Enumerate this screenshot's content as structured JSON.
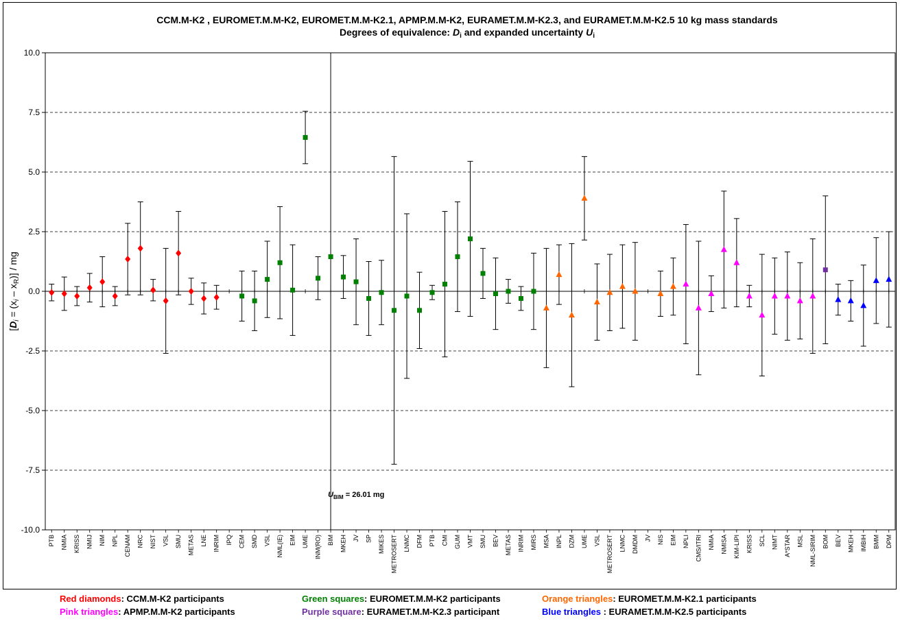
{
  "chart_data": {
    "type": "scatter",
    "title": "CCM.M-K2 , EUROMET.M.M-K2, EUROMET.M.M-K2.1, APMP.M.M-K2, EURAMET.M.M-K2.3, and EURAMET.M.M-K2.5   10 kg mass standards",
    "subtitle": "Degrees of equivalence: D",
    "subtitle_sub": "i",
    "subtitle_tail": " and expanded uncertainty U",
    "subtitle_tail_sub": "i",
    "ylabel": "[D",
    "ylabel_parts": {
      "a": "[",
      "D": "D",
      "i1": "i",
      "b": " = (x",
      "i2": "i",
      "c": " – x",
      "R": "R",
      "d": ")] / mg"
    },
    "ylim": [
      -10,
      10
    ],
    "yticks": [
      "10.0",
      "7.5",
      "5.0",
      "2.5",
      "0.0",
      "-2.5",
      "-5.0",
      "-7.5",
      "-10.0"
    ],
    "ytick_values": [
      10,
      7.5,
      5,
      2.5,
      0,
      -2.5,
      -5,
      -7.5,
      -10
    ],
    "grid": "horizontal dashed",
    "annotation": {
      "U": "U",
      "sub": "BIM",
      "text": " = 26.01 mg"
    },
    "categories": [
      "PTB",
      "NMIA",
      "KRISS",
      "NMIJ",
      "NIM",
      "NPL",
      "CENAM",
      "NRC",
      "NIST",
      "VSL",
      "SMU",
      "METAS",
      "LNE",
      "INRIM",
      "IPQ",
      "CEM",
      "SMD",
      "VSL",
      "NML(IE)",
      "EIM",
      "UME",
      "INM(RO)",
      "BIM",
      "MKEH",
      "JV",
      "SP",
      "MIKES",
      "METROSERT",
      "LNMC",
      "DFM",
      "PTB",
      "CMI",
      "GUM",
      "VMT",
      "SMU",
      "BEV",
      "METAS",
      "INRIM",
      "MIRS",
      "MSA",
      "INPL",
      "DZM",
      "UME",
      "VSL",
      "METROSERT",
      "LNMC",
      "DMDM",
      "JV",
      "NIS",
      "EIM",
      "NPLI",
      "CMS/ITRI",
      "NMIA",
      "NMISA",
      "KIM-LIPI",
      "KRISS",
      "SCL",
      "NIMT",
      "A*STAR",
      "MSL",
      "NML-SIRIM",
      "BOM",
      "BEV",
      "MKEH",
      "IMBIH",
      "BMM",
      "DPM"
    ],
    "series": [
      {
        "name": "Red diamonds",
        "color": "#ff0000",
        "marker": "diamond",
        "points": [
          {
            "c": 0,
            "y": -0.05,
            "u": 0.35
          },
          {
            "c": 1,
            "y": -0.1,
            "u": 0.7
          },
          {
            "c": 2,
            "y": -0.2,
            "u": 0.4
          },
          {
            "c": 3,
            "y": 0.15,
            "u": 0.6
          },
          {
            "c": 4,
            "y": 0.4,
            "u": 1.05
          },
          {
            "c": 5,
            "y": -0.2,
            "u": 0.4
          },
          {
            "c": 6,
            "y": 1.35,
            "u": 1.5
          },
          {
            "c": 7,
            "y": 1.8,
            "u": 1.95
          },
          {
            "c": 8,
            "y": 0.05,
            "u": 0.45
          },
          {
            "c": 9,
            "y": -0.4,
            "u": 2.2
          },
          {
            "c": 10,
            "y": 1.6,
            "u": 1.75
          },
          {
            "c": 11,
            "y": 0.0,
            "u": 0.55
          },
          {
            "c": 12,
            "y": -0.3,
            "u": 0.65
          },
          {
            "c": 13,
            "y": -0.25,
            "u": 0.5
          }
        ]
      },
      {
        "name": "Green squares",
        "color": "#008000",
        "marker": "square",
        "points": [
          {
            "c": 15,
            "y": -0.2,
            "u": 1.05
          },
          {
            "c": 16,
            "y": -0.4,
            "u": 1.25
          },
          {
            "c": 17,
            "y": 0.5,
            "u": 1.6
          },
          {
            "c": 18,
            "y": 1.2,
            "u": 2.35
          },
          {
            "c": 19,
            "y": 0.05,
            "u": 1.9
          },
          {
            "c": 20,
            "y": 6.45,
            "u": 1.1
          },
          {
            "c": 21,
            "y": 0.55,
            "u": 0.9
          },
          {
            "c": 22,
            "y": 1.45,
            "u": 13.0
          },
          {
            "c": 23,
            "y": 0.6,
            "u": 0.9
          },
          {
            "c": 24,
            "y": 0.4,
            "u": 1.8
          },
          {
            "c": 25,
            "y": -0.3,
            "u": 1.55
          },
          {
            "c": 26,
            "y": -0.05,
            "u": 1.35
          },
          {
            "c": 27,
            "y": -0.8,
            "u": 6.45
          },
          {
            "c": 28,
            "y": -0.2,
            "u": 3.45
          },
          {
            "c": 29,
            "y": -0.8,
            "u": 1.6
          },
          {
            "c": 30,
            "y": -0.05,
            "u": 0.3
          },
          {
            "c": 31,
            "y": 0.3,
            "u": 3.05
          },
          {
            "c": 32,
            "y": 1.45,
            "u": 2.3
          },
          {
            "c": 33,
            "y": 2.2,
            "u": 3.25
          },
          {
            "c": 34,
            "y": 0.75,
            "u": 1.05
          },
          {
            "c": 35,
            "y": -0.1,
            "u": 1.5
          },
          {
            "c": 36,
            "y": 0.0,
            "u": 0.5
          },
          {
            "c": 37,
            "y": -0.3,
            "u": 0.5
          },
          {
            "c": 38,
            "y": 0.0,
            "u": 1.6
          }
        ]
      },
      {
        "name": "Orange triangles",
        "color": "#ff6600",
        "marker": "triangle",
        "points": [
          {
            "c": 39,
            "y": -0.7,
            "u": 2.5
          },
          {
            "c": 40,
            "y": 0.7,
            "u": 1.25
          },
          {
            "c": 41,
            "y": -1.0,
            "u": 3.0
          },
          {
            "c": 42,
            "y": 3.9,
            "u": 1.75
          },
          {
            "c": 43,
            "y": -0.45,
            "u": 1.6
          },
          {
            "c": 44,
            "y": -0.05,
            "u": 1.6
          },
          {
            "c": 45,
            "y": 0.2,
            "u": 1.75
          },
          {
            "c": 46,
            "y": 0.0,
            "u": 2.05
          },
          {
            "c": 48,
            "y": -0.1,
            "u": 0.95
          },
          {
            "c": 49,
            "y": 0.2,
            "u": 1.2
          }
        ]
      },
      {
        "name": "Pink triangles",
        "color": "#ff00ff",
        "marker": "triangle",
        "points": [
          {
            "c": 50,
            "y": 0.3,
            "u": 2.5
          },
          {
            "c": 51,
            "y": -0.7,
            "u": 2.8
          },
          {
            "c": 52,
            "y": -0.1,
            "u": 0.75
          },
          {
            "c": 53,
            "y": 1.75,
            "u": 2.45
          },
          {
            "c": 54,
            "y": 1.2,
            "u": 1.85
          },
          {
            "c": 55,
            "y": -0.2,
            "u": 0.45
          },
          {
            "c": 56,
            "y": -1.0,
            "u": 2.55
          },
          {
            "c": 57,
            "y": -0.2,
            "u": 1.6
          },
          {
            "c": 58,
            "y": -0.2,
            "u": 1.85
          },
          {
            "c": 59,
            "y": -0.4,
            "u": 1.6
          },
          {
            "c": 60,
            "y": -0.2,
            "u": 2.4
          }
        ]
      },
      {
        "name": "Purple square",
        "color": "#7030a0",
        "marker": "square",
        "points": [
          {
            "c": 61,
            "y": 0.9,
            "u": 3.1
          }
        ]
      },
      {
        "name": "Blue triangles",
        "color": "#0000ff",
        "marker": "triangle",
        "points": [
          {
            "c": 62,
            "y": -0.35,
            "u": 0.65
          },
          {
            "c": 63,
            "y": -0.4,
            "u": 0.85
          },
          {
            "c": 64,
            "y": -0.6,
            "u": 1.7
          },
          {
            "c": 65,
            "y": 0.45,
            "u": 1.8
          },
          {
            "c": 66,
            "y": 0.5,
            "u": 2.0
          }
        ]
      }
    ]
  },
  "legend": [
    {
      "key": "Red diamonds",
      "sep": ": ",
      "desc": "CCM.M-K2 participants",
      "color": "#ff0000"
    },
    {
      "key": "Green squares",
      "sep": ": ",
      "desc": "EUROMET.M.M-K2 participants",
      "color": "#008000"
    },
    {
      "key": "Orange triangles",
      "sep": ": ",
      "desc": "EUROMET.M.M-K2.1 participants",
      "color": "#ff6600"
    },
    {
      "key": "Pink triangles",
      "sep": ": ",
      "desc": "APMP.M.M-K2 participants",
      "color": "#ff00ff"
    },
    {
      "key": "Purple square",
      "sep": ": ",
      "desc": "EURAMET.M.M-K2.3 participant",
      "color": "#7030a0"
    },
    {
      "key": "Blue triangles ",
      "sep": ": ",
      "desc": "EURAMET.M.M-K2.5 participants",
      "color": "#0000ff"
    }
  ]
}
